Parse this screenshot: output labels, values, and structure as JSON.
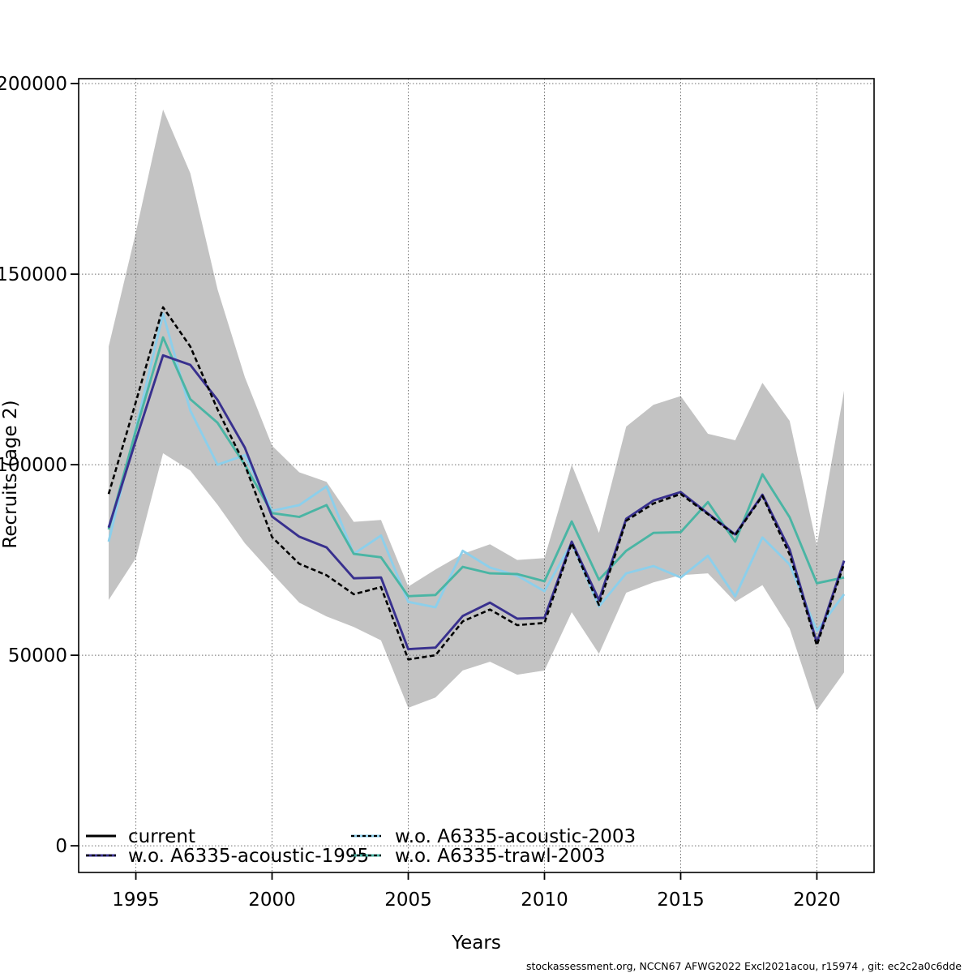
{
  "figure": {
    "footer": "stockassessment.org, NCCN67 AFWG2022 Excl2021acou, r15974 , git: ec2c2a0c6dde"
  },
  "chart_data": {
    "type": "line",
    "title": "",
    "xlabel": "Years",
    "ylabel": "Recruits (age 2)",
    "grid": "dotted",
    "legend_position": "bottom-left-inside",
    "xlim": [
      1992.9,
      2022.1
    ],
    "ylim": [
      -7000,
      201300
    ],
    "x_ticks": [
      1995,
      2000,
      2005,
      2010,
      2015,
      2020
    ],
    "y_ticks": [
      0,
      50000,
      100000,
      150000,
      200000
    ],
    "years": [
      1994,
      1995,
      1996,
      1997,
      1998,
      1999,
      2000,
      2001,
      2002,
      2003,
      2004,
      2005,
      2006,
      2007,
      2008,
      2009,
      2010,
      2011,
      2012,
      2013,
      2014,
      2015,
      2016,
      2017,
      2018,
      2019,
      2020,
      2021
    ],
    "series": [
      {
        "name": "current",
        "color": "#000000",
        "line_style": "dashed",
        "values": [
          92300,
          116500,
          141300,
          131000,
          114500,
          100000,
          81000,
          74000,
          71000,
          66000,
          67900,
          48900,
          50000,
          58900,
          62000,
          57900,
          58500,
          79400,
          63200,
          85300,
          89800,
          92300,
          87000,
          81500,
          91800,
          76400,
          52600,
          74000
        ]
      },
      {
        "name": "w.o. A6335-acoustic-1995",
        "color": "#38308e",
        "line_style": "solid",
        "values": [
          83500,
          106500,
          128700,
          126200,
          117000,
          104500,
          86400,
          81100,
          78300,
          70200,
          70400,
          51600,
          52000,
          60300,
          63800,
          59600,
          59800,
          79800,
          64500,
          85800,
          90600,
          92800,
          87200,
          81700,
          92100,
          77700,
          53300,
          74800
        ]
      },
      {
        "name": "w.o. A6335-acoustic-2003",
        "color": "#8ccfeb",
        "line_style": "solid",
        "values": [
          79800,
          109500,
          139600,
          114200,
          100000,
          102500,
          87900,
          89400,
          94300,
          76600,
          81400,
          64000,
          62600,
          77400,
          73000,
          70900,
          66800,
          79500,
          62800,
          71500,
          73400,
          70400,
          76100,
          65400,
          80900,
          73800,
          56400,
          66000
        ]
      },
      {
        "name": "w.o. A6335-trawl-2003",
        "color": "#4ab5a4",
        "line_style": "solid",
        "values": [
          83000,
          109000,
          133400,
          117200,
          111000,
          100000,
          87300,
          86300,
          89400,
          76600,
          75700,
          65500,
          65800,
          73200,
          71500,
          71300,
          69400,
          85100,
          69800,
          77400,
          82100,
          82300,
          90200,
          79800,
          97500,
          86200,
          68900,
          70400
        ]
      }
    ],
    "confidence_band": {
      "series": "current",
      "color": "#c3c3c3",
      "lower": [
        64500,
        75500,
        103000,
        98500,
        89500,
        79400,
        71500,
        63800,
        60200,
        57400,
        53900,
        36200,
        38900,
        46000,
        48300,
        44900,
        46000,
        61300,
        50400,
        66400,
        69100,
        71000,
        71500,
        64000,
        68400,
        57000,
        35500,
        45500
      ],
      "upper": [
        131000,
        161000,
        193200,
        176500,
        146000,
        123000,
        105000,
        98000,
        95500,
        85000,
        85500,
        68000,
        72500,
        76600,
        79100,
        75000,
        75500,
        100000,
        82100,
        110000,
        115700,
        118000,
        108100,
        106400,
        121500,
        111500,
        78700,
        119400
      ]
    },
    "legend": {
      "entries": [
        {
          "label": "current",
          "color": "#000000",
          "dash_overlay": false,
          "col": 0,
          "row": 0
        },
        {
          "label": "w.o. A6335-acoustic-1995",
          "color": "#38308e",
          "dash_overlay": true,
          "col": 0,
          "row": 1
        },
        {
          "label": "w.o. A6335-acoustic-2003",
          "color": "#8ccfeb",
          "dash_overlay": true,
          "col": 1,
          "row": 0
        },
        {
          "label": "w.o. A6335-trawl-2003",
          "color": "#4ab5a4",
          "dash_overlay": true,
          "col": 1,
          "row": 1
        }
      ]
    }
  }
}
